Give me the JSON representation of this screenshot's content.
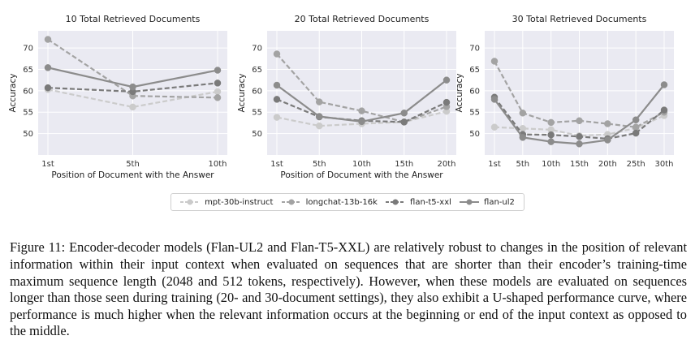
{
  "chart_data": [
    {
      "type": "line",
      "title": "10 Total Retrieved Documents",
      "xlabel": "Position of Document with the Answer",
      "ylabel": "Accuracy",
      "categories": [
        "1st",
        "5th",
        "10th"
      ],
      "ylim": [
        45,
        74
      ],
      "yticks": [
        50,
        55,
        60,
        65,
        70
      ],
      "grid": true,
      "series": [
        {
          "name": "mpt-30b-instruct",
          "values": [
            60.3,
            56.2,
            59.8
          ]
        },
        {
          "name": "longchat-13b-16k",
          "values": [
            72.0,
            58.8,
            58.4
          ]
        },
        {
          "name": "flan-t5-xxl",
          "values": [
            60.7,
            59.8,
            61.8
          ]
        },
        {
          "name": "flan-ul2",
          "values": [
            65.4,
            60.9,
            64.8
          ]
        }
      ]
    },
    {
      "type": "line",
      "title": "20 Total Retrieved Documents",
      "xlabel": "Position of Document with the Answer",
      "ylabel": "Accuracy",
      "categories": [
        "1st",
        "5th",
        "10th",
        "15th",
        "20th"
      ],
      "ylim": [
        45,
        74
      ],
      "yticks": [
        50,
        55,
        60,
        65,
        70
      ],
      "grid": true,
      "series": [
        {
          "name": "mpt-30b-instruct",
          "values": [
            53.8,
            51.8,
            52.3,
            52.7,
            55.2
          ]
        },
        {
          "name": "longchat-13b-16k",
          "values": [
            68.6,
            57.4,
            55.3,
            52.7,
            56.3
          ]
        },
        {
          "name": "flan-t5-xxl",
          "values": [
            58.0,
            53.9,
            53.0,
            52.7,
            57.3
          ]
        },
        {
          "name": "flan-ul2",
          "values": [
            61.3,
            54.0,
            52.8,
            54.8,
            62.5
          ]
        }
      ]
    },
    {
      "type": "line",
      "title": "30 Total Retrieved Documents",
      "xlabel": "",
      "ylabel": "Accuracy",
      "categories": [
        "1st",
        "5th",
        "10th",
        "15th",
        "20th",
        "25th",
        "30th"
      ],
      "ylim": [
        45,
        74
      ],
      "yticks": [
        50,
        55,
        60,
        65,
        70
      ],
      "grid": true,
      "series": [
        {
          "name": "mpt-30b-instruct",
          "values": [
            51.5,
            51.2,
            50.9,
            49.5,
            49.8,
            51.3,
            54.2
          ]
        },
        {
          "name": "longchat-13b-16k",
          "values": [
            66.9,
            54.8,
            52.6,
            53.0,
            52.3,
            51.5,
            55.0
          ]
        },
        {
          "name": "flan-t5-xxl",
          "values": [
            58.5,
            49.8,
            49.7,
            49.3,
            48.8,
            50.1,
            55.5
          ]
        },
        {
          "name": "flan-ul2",
          "values": [
            58.0,
            49.1,
            48.1,
            47.6,
            48.5,
            53.2,
            61.4
          ]
        }
      ]
    }
  ],
  "legend": {
    "items": [
      {
        "label": "mpt-30b-instruct",
        "color": "#c9c9c9",
        "dashed": true
      },
      {
        "label": "longchat-13b-16k",
        "color": "#9b9b9b",
        "dashed": true
      },
      {
        "label": "flan-t5-xxl",
        "color": "#7f7f7f",
        "dashed": true
      },
      {
        "label": "flan-ul2",
        "color": "#8a8a8a",
        "dashed": false
      }
    ]
  },
  "caption": "Figure 11: Encoder-decoder models (Flan-UL2 and Flan-T5-XXL) are relatively robust to changes in the position of relevant information within their input context when evaluated on sequences that are shorter than their encoder’s training-time maximum sequence length (2048 and 512 tokens, respectively). However, when these models are evaluated on sequences longer than those seen during training (20- and 30-document settings), they also exhibit a U-shaped performance curve, where performance is much higher when the relevant information occurs at the beginning or end of the input context as opposed to the middle."
}
